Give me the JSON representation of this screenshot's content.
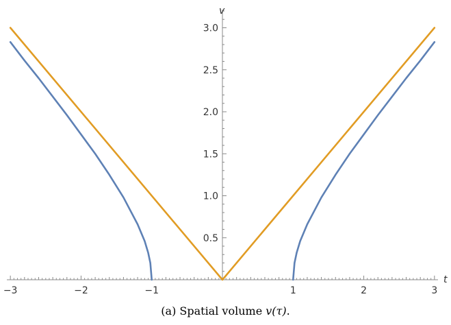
{
  "caption": {
    "prefix": "(a) Spatial volume ",
    "math": "v(τ)",
    "suffix": "."
  },
  "chart_data": {
    "type": "line",
    "xlabel": "t",
    "ylabel": "v",
    "xlim": [
      -3.05,
      3.05
    ],
    "ylim": [
      0,
      3.2
    ],
    "grid": false,
    "x_ticks": [
      -3,
      -2,
      -1,
      0,
      1,
      2,
      3
    ],
    "x_tick_labels": [
      "-3",
      "-2",
      "-1",
      "",
      "1",
      "2",
      "3"
    ],
    "y_ticks": [
      0.5,
      1.0,
      1.5,
      2.0,
      2.5,
      3.0
    ],
    "y_tick_labels": [
      "0.5",
      "1.0",
      "1.5",
      "2.0",
      "2.5",
      "3.0"
    ],
    "series": [
      {
        "color": "#5E81B5",
        "segments": [
          [
            [
              -3,
              2.83
            ],
            [
              -2.8,
              2.61
            ],
            [
              -2.6,
              2.4
            ],
            [
              -2.4,
              2.18
            ],
            [
              -2.2,
              1.96
            ],
            [
              -2.0,
              1.73
            ],
            [
              -1.8,
              1.5
            ],
            [
              -1.6,
              1.25
            ],
            [
              -1.4,
              0.98
            ],
            [
              -1.2,
              0.66
            ],
            [
              -1.1,
              0.46
            ],
            [
              -1.05,
              0.32
            ],
            [
              -1.02,
              0.2
            ],
            [
              -1.0,
              0.0
            ]
          ],
          [
            [
              1.0,
              0.0
            ],
            [
              1.02,
              0.2
            ],
            [
              1.05,
              0.32
            ],
            [
              1.1,
              0.46
            ],
            [
              1.2,
              0.66
            ],
            [
              1.4,
              0.98
            ],
            [
              1.6,
              1.25
            ],
            [
              1.8,
              1.5
            ],
            [
              2.0,
              1.73
            ],
            [
              2.2,
              1.96
            ],
            [
              2.4,
              2.18
            ],
            [
              2.6,
              2.4
            ],
            [
              2.8,
              2.61
            ],
            [
              3.0,
              2.83
            ]
          ]
        ]
      },
      {
        "color": "#E19C24",
        "segments": [
          [
            [
              -3,
              3.0
            ],
            [
              0,
              0.0
            ],
            [
              3,
              3.0
            ]
          ]
        ]
      }
    ]
  }
}
